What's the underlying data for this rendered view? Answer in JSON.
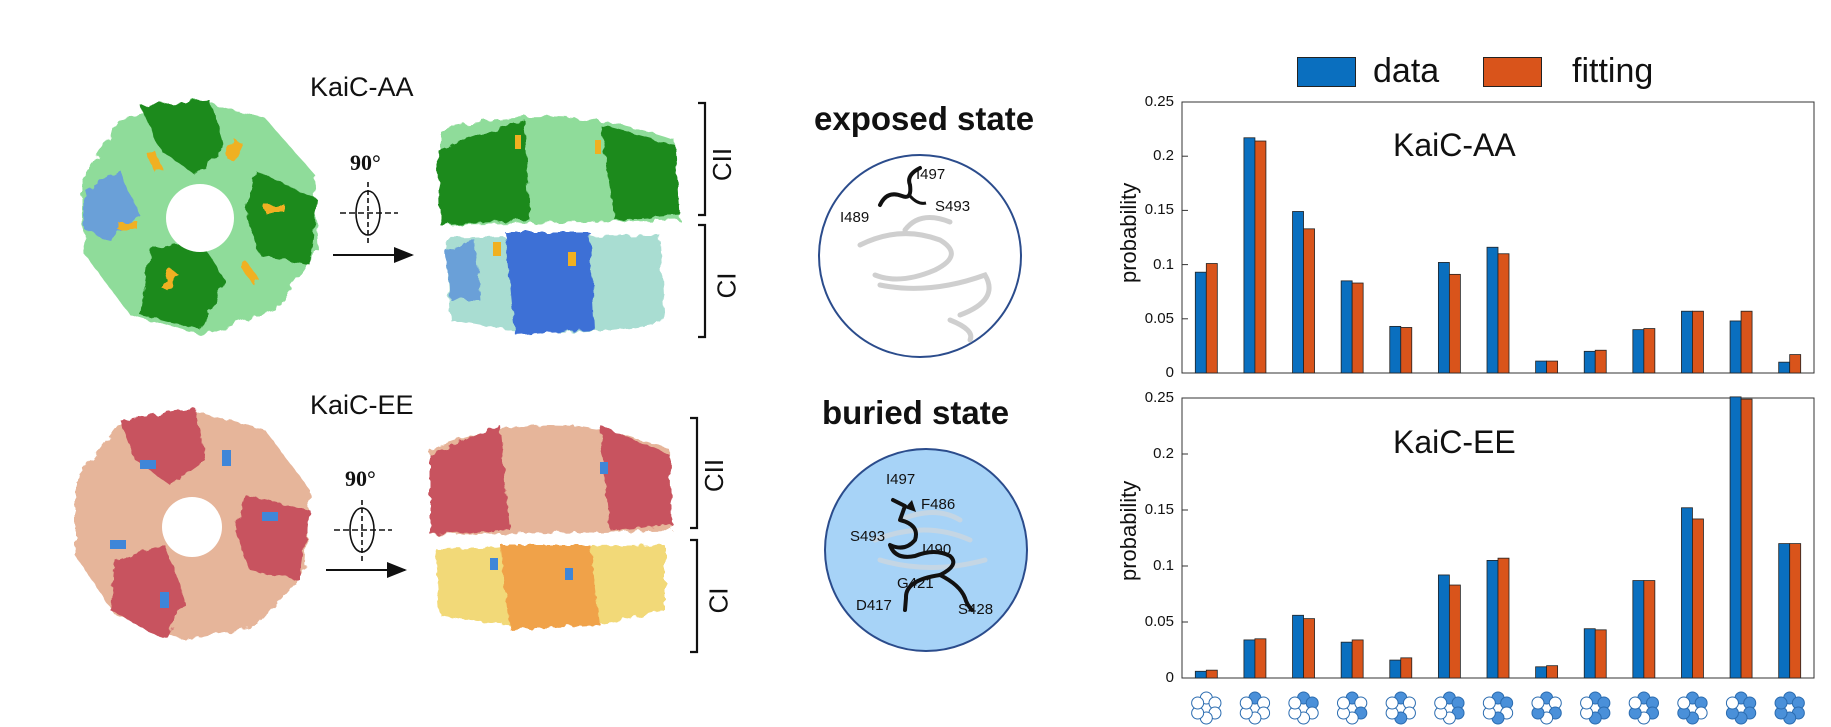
{
  "structures": {
    "aa_title": "KaiC-AA",
    "ee_title": "KaiC-EE",
    "rotation_label": "90°",
    "domain_upper": "CII",
    "domain_lower": "CI",
    "colors": {
      "aa_dark": "#1f8a1f",
      "aa_light": "#8fdc9a",
      "aa_blue": "#3d6fd6",
      "aa_cyan": "#a9ddd2",
      "aa_accent": "#f0b021",
      "ee_red": "#c8525e",
      "ee_tan": "#e6b59a",
      "ee_yellow": "#f2d978",
      "ee_orange": "#f0a24a",
      "ee_accent": "#3f86d8"
    }
  },
  "states": {
    "exposed": {
      "label": "exposed state",
      "residues": [
        "I497",
        "I489",
        "S493"
      ]
    },
    "buried": {
      "label": "buried state",
      "residues": [
        "I497",
        "F486",
        "S493",
        "I490",
        "G421",
        "D417",
        "S428"
      ]
    }
  },
  "chart_data": [
    {
      "type": "bar",
      "title": "KaiC-AA",
      "ylabel": "probability",
      "xlabel": "",
      "ylim": [
        0,
        0.25
      ],
      "yticks": [
        0,
        0.05,
        0.1,
        0.15,
        0.2,
        0.25
      ],
      "ytick_labels": [
        "0",
        "0.05",
        "0.1",
        "0.15",
        "0.2",
        "0.25"
      ],
      "legend": "top",
      "categories": [
        "0",
        "1",
        "2o",
        "2m",
        "2p",
        "3a",
        "3b",
        "3c",
        "4o",
        "4m",
        "4p",
        "5",
        "6"
      ],
      "series": [
        {
          "name": "data",
          "color": "#0a6fbf",
          "values": [
            0.093,
            0.217,
            0.149,
            0.085,
            0.043,
            0.102,
            0.116,
            0.011,
            0.02,
            0.04,
            0.057,
            0.048,
            0.01
          ]
        },
        {
          "name": "fitting",
          "color": "#d9541b",
          "values": [
            0.101,
            0.214,
            0.133,
            0.083,
            0.042,
            0.091,
            0.11,
            0.011,
            0.021,
            0.041,
            0.057,
            0.057,
            0.017
          ]
        }
      ]
    },
    {
      "type": "bar",
      "title": "KaiC-EE",
      "ylabel": "probability",
      "xlabel": "",
      "ylim": [
        0,
        0.25
      ],
      "yticks": [
        0,
        0.05,
        0.1,
        0.15,
        0.2,
        0.25
      ],
      "ytick_labels": [
        "0",
        "0.05",
        "0.1",
        "0.15",
        "0.2",
        "0.25"
      ],
      "legend": "top",
      "categories": [
        "0",
        "1",
        "2o",
        "2m",
        "2p",
        "3a",
        "3b",
        "3c",
        "4o",
        "4m",
        "4p",
        "5",
        "6"
      ],
      "series": [
        {
          "name": "data",
          "color": "#0a6fbf",
          "values": [
            0.006,
            0.034,
            0.056,
            0.032,
            0.016,
            0.092,
            0.105,
            0.01,
            0.044,
            0.087,
            0.152,
            0.251,
            0.12
          ]
        },
        {
          "name": "fitting",
          "color": "#d9541b",
          "values": [
            0.007,
            0.035,
            0.053,
            0.034,
            0.018,
            0.083,
            0.107,
            0.011,
            0.043,
            0.087,
            0.142,
            0.249,
            0.12
          ]
        }
      ]
    }
  ],
  "legend": {
    "items": [
      {
        "name": "data",
        "color": "#0a6fbf"
      },
      {
        "name": "fitting",
        "color": "#d9541b"
      }
    ]
  },
  "hexamer_patterns": [
    [
      0,
      0,
      0,
      0,
      0,
      0
    ],
    [
      1,
      0,
      0,
      0,
      0,
      0
    ],
    [
      1,
      1,
      0,
      0,
      0,
      0
    ],
    [
      1,
      0,
      1,
      0,
      0,
      0
    ],
    [
      1,
      0,
      0,
      1,
      0,
      0
    ],
    [
      1,
      1,
      1,
      0,
      0,
      0
    ],
    [
      1,
      1,
      0,
      1,
      0,
      0
    ],
    [
      1,
      0,
      1,
      0,
      1,
      0
    ],
    [
      1,
      1,
      1,
      1,
      0,
      0
    ],
    [
      1,
      1,
      1,
      0,
      1,
      0
    ],
    [
      1,
      1,
      0,
      1,
      1,
      0
    ],
    [
      1,
      1,
      1,
      1,
      1,
      0
    ],
    [
      1,
      1,
      1,
      1,
      1,
      1
    ]
  ]
}
